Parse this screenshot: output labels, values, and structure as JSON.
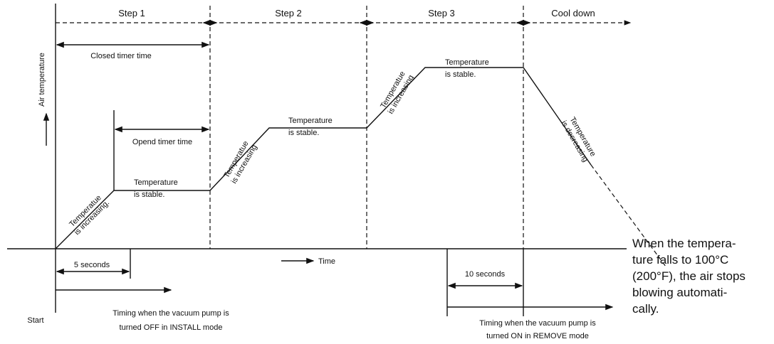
{
  "phases": [
    "Step 1",
    "Step 2",
    "Step 3",
    "Cool down"
  ],
  "axis_labels": {
    "y": "Air temperature",
    "x": "Time"
  },
  "timers": {
    "closed": "Closed timer time",
    "opened": "Opend timer time"
  },
  "increasing": [
    [
      "Temperatue",
      "is increasing."
    ],
    [
      "Temperatue",
      "is increasing"
    ],
    [
      "Temperatue",
      "is increasing"
    ]
  ],
  "stable": [
    [
      "Temperature",
      "is stable."
    ],
    [
      "Temperature",
      "is stable."
    ],
    [
      "Temperature",
      "is stable."
    ]
  ],
  "decreasing": [
    "Temperature",
    "is decreasing"
  ],
  "start": "Start",
  "install": {
    "duration": "5 seconds",
    "lines": [
      "Timing when the vacuum pump is",
      "turned OFF in INSTALL mode"
    ]
  },
  "remove": {
    "duration": "10 seconds",
    "lines": [
      "Timing when the vacuum pump is",
      "turned ON in REMOVE mode"
    ]
  },
  "note": [
    "When the tempera-",
    "ture falls to 100°C",
    "(200°F), the air stops",
    "blowing automati-",
    "cally."
  ]
}
